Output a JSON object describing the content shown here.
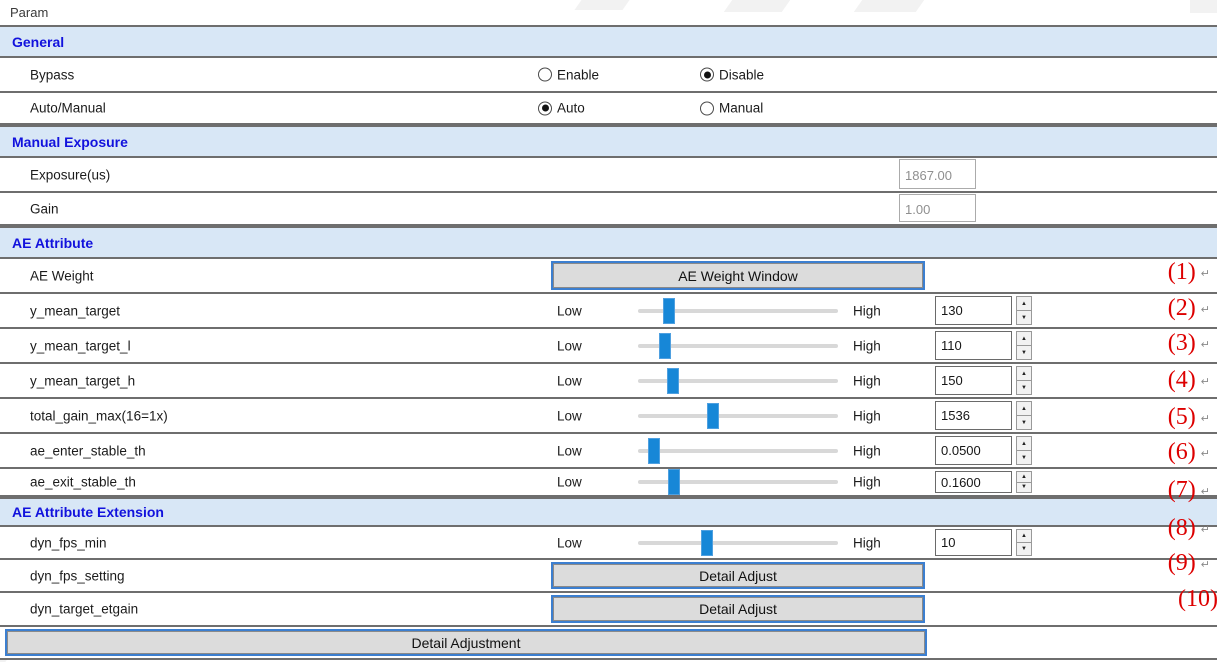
{
  "page_title": "Param",
  "icons": {
    "spin_up": "▲",
    "spin_down": "▼",
    "return_mark": "↵"
  },
  "colors": {
    "section_header_bg": "#d8e7f6",
    "section_header_text": "#1212dd",
    "slider_handle": "#1787d7",
    "button_border": "#3c7fd0",
    "annotation_red": "#dd0000",
    "divider": "#6e6e6e"
  },
  "general": {
    "title": "General",
    "bypass": {
      "label": "Bypass",
      "options": [
        {
          "label": "Enable",
          "checked": false
        },
        {
          "label": "Disable",
          "checked": true
        }
      ]
    },
    "auto_manual": {
      "label": "Auto/Manual",
      "options": [
        {
          "label": "Auto",
          "checked": true
        },
        {
          "label": "Manual",
          "checked": false
        }
      ]
    }
  },
  "manual_exposure": {
    "title": "Manual Exposure",
    "fields": [
      {
        "label": "Exposure(us)",
        "value": "1867.00"
      },
      {
        "label": "Gain",
        "value": "1.00"
      }
    ]
  },
  "ae_attribute": {
    "title": "AE Attribute",
    "weight": {
      "label": "AE Weight",
      "button": "AE Weight Window"
    },
    "sliders": [
      {
        "label": "y_mean_target",
        "low": "Low",
        "high": "High",
        "value": "130",
        "position_pct": 15.5
      },
      {
        "label": "y_mean_target_l",
        "low": "Low",
        "high": "High",
        "value": "110",
        "position_pct": 13.5
      },
      {
        "label": "y_mean_target_h",
        "low": "Low",
        "high": "High",
        "value": "150",
        "position_pct": 17.5
      },
      {
        "label": "total_gain_max(16=1x)",
        "low": "Low",
        "high": "High",
        "value": "1536",
        "position_pct": 37.5
      },
      {
        "label": "ae_enter_stable_th",
        "low": "Low",
        "high": "High",
        "value": "0.0500",
        "position_pct": 8
      },
      {
        "label": "ae_exit_stable_th",
        "low": "Low",
        "high": "High",
        "value": "0.1600",
        "position_pct": 18
      }
    ]
  },
  "ae_attribute_extension": {
    "title": "AE Attribute Extension",
    "sliders": [
      {
        "label": "dyn_fps_min",
        "low": "Low",
        "high": "High",
        "value": "10",
        "position_pct": 34.5
      }
    ],
    "button_rows": [
      {
        "label": "dyn_fps_setting",
        "button": "Detail Adjust"
      },
      {
        "label": "dyn_target_etgain",
        "button": "Detail Adjust"
      }
    ]
  },
  "footer_button": "Detail Adjustment",
  "annotations": [
    {
      "text": "(1)",
      "return": true
    },
    {
      "text": "(2)",
      "return": true
    },
    {
      "text": "(3)",
      "return": true
    },
    {
      "text": "(4)",
      "return": true
    },
    {
      "text": "(5)",
      "return": true
    },
    {
      "text": "(6)",
      "return": true
    },
    {
      "text": "(7)",
      "return": true
    },
    {
      "text": "(8)",
      "return": true
    },
    {
      "text": "(9)",
      "return": true
    },
    {
      "text": "(10)",
      "return": false
    }
  ]
}
